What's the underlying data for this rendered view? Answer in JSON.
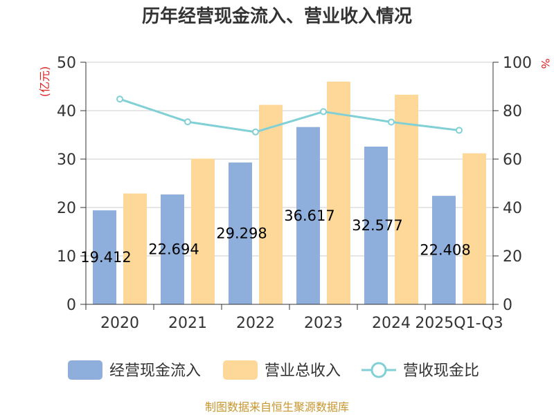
{
  "chart_data": {
    "type": "bar",
    "title": "历年经营现金流入、营业收入情况",
    "left_unit": "(亿元)",
    "right_unit": "%",
    "categories": [
      "2020",
      "2021",
      "2022",
      "2023",
      "2024",
      "2025Q1-Q3"
    ],
    "series": [
      {
        "name": "经营现金流入",
        "type": "bar",
        "axis": "left",
        "color": "#8eaedb",
        "values": [
          19.412,
          22.694,
          29.298,
          36.617,
          32.577,
          22.408
        ],
        "labels": [
          "19.412",
          "22.694",
          "29.298",
          "36.617",
          "32.577",
          "22.408"
        ]
      },
      {
        "name": "营业总收入",
        "type": "bar",
        "axis": "left",
        "color": "#fdd899",
        "values": [
          22.9,
          30.1,
          41.2,
          46.0,
          43.3,
          31.2
        ]
      },
      {
        "name": "营收现金比",
        "type": "line",
        "axis": "right",
        "color": "#80d0d6",
        "values": [
          84.8,
          75.4,
          71.2,
          79.6,
          75.3,
          71.9
        ]
      }
    ],
    "left_axis": {
      "min": 0,
      "max": 50,
      "ticks": [
        "0",
        "10",
        "20",
        "30",
        "40",
        "50"
      ]
    },
    "right_axis": {
      "min": 0,
      "max": 100,
      "ticks": [
        "0",
        "20",
        "40",
        "60",
        "80",
        "100"
      ]
    },
    "grid": true,
    "legend_position": "bottom"
  },
  "source_text": "制图数据来自恒生聚源数据库"
}
